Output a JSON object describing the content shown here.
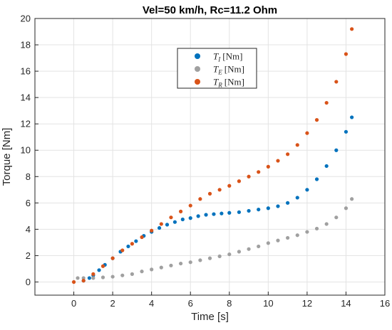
{
  "chart_data": {
    "type": "scatter",
    "title": "Vel=50 km/h, Rc=11.2 Ohm",
    "xlabel": "Time [s]",
    "ylabel": "Torque [Nm]",
    "xlim": [
      -2,
      16
    ],
    "ylim": [
      -1,
      20
    ],
    "xticks": [
      0,
      2,
      4,
      6,
      8,
      10,
      12,
      14,
      16
    ],
    "yticks": [
      0,
      2,
      4,
      6,
      8,
      10,
      12,
      14,
      16,
      18,
      20
    ],
    "grid": true,
    "legend_position": "top-center",
    "series": [
      {
        "name": "T_I [Nm]",
        "legend": {
          "symbol": "T",
          "subscript": "I",
          "unit": "[Nm]"
        },
        "color": "#0072BD",
        "points": [
          [
            0.5,
            0.1
          ],
          [
            0.8,
            0.3
          ],
          [
            1.0,
            0.5
          ],
          [
            1.3,
            0.9
          ],
          [
            1.6,
            1.3
          ],
          [
            2.0,
            1.8
          ],
          [
            2.4,
            2.3
          ],
          [
            2.8,
            2.7
          ],
          [
            3.2,
            3.1
          ],
          [
            3.6,
            3.5
          ],
          [
            4.0,
            3.8
          ],
          [
            4.4,
            4.1
          ],
          [
            4.8,
            4.35
          ],
          [
            5.2,
            4.55
          ],
          [
            5.6,
            4.75
          ],
          [
            6.0,
            4.85
          ],
          [
            6.4,
            5.0
          ],
          [
            6.8,
            5.1
          ],
          [
            7.2,
            5.15
          ],
          [
            7.6,
            5.2
          ],
          [
            8.0,
            5.25
          ],
          [
            8.5,
            5.3
          ],
          [
            9.0,
            5.4
          ],
          [
            9.5,
            5.5
          ],
          [
            10.0,
            5.6
          ],
          [
            10.5,
            5.75
          ],
          [
            11.0,
            6.0
          ],
          [
            11.5,
            6.4
          ],
          [
            12.0,
            7.0
          ],
          [
            12.5,
            7.8
          ],
          [
            13.0,
            8.8
          ],
          [
            13.5,
            10.0
          ],
          [
            14.0,
            11.4
          ],
          [
            14.3,
            12.5
          ]
        ]
      },
      {
        "name": "T_E [Nm]",
        "legend": {
          "symbol": "T",
          "subscript": "E",
          "unit": "[Nm]"
        },
        "color": "#A0A0A0",
        "points": [
          [
            0.2,
            0.3
          ],
          [
            0.5,
            0.3
          ],
          [
            1.0,
            0.3
          ],
          [
            1.5,
            0.35
          ],
          [
            2.0,
            0.4
          ],
          [
            2.5,
            0.5
          ],
          [
            3.0,
            0.6
          ],
          [
            3.5,
            0.8
          ],
          [
            4.0,
            0.95
          ],
          [
            4.5,
            1.1
          ],
          [
            5.0,
            1.25
          ],
          [
            5.5,
            1.4
          ],
          [
            6.0,
            1.5
          ],
          [
            6.5,
            1.65
          ],
          [
            7.0,
            1.8
          ],
          [
            7.5,
            1.95
          ],
          [
            8.0,
            2.1
          ],
          [
            8.5,
            2.3
          ],
          [
            9.0,
            2.5
          ],
          [
            9.5,
            2.7
          ],
          [
            10.0,
            2.95
          ],
          [
            10.5,
            3.15
          ],
          [
            11.0,
            3.35
          ],
          [
            11.5,
            3.55
          ],
          [
            12.0,
            3.8
          ],
          [
            12.5,
            4.05
          ],
          [
            13.0,
            4.4
          ],
          [
            13.5,
            4.9
          ],
          [
            14.0,
            5.6
          ],
          [
            14.3,
            6.3
          ]
        ]
      },
      {
        "name": "T_R [Nm]",
        "legend": {
          "symbol": "T",
          "subscript": "R",
          "unit": "[Nm]"
        },
        "color": "#D95319",
        "points": [
          [
            0.0,
            0.0
          ],
          [
            0.5,
            0.1
          ],
          [
            1.0,
            0.6
          ],
          [
            1.5,
            1.2
          ],
          [
            2.0,
            1.8
          ],
          [
            2.5,
            2.4
          ],
          [
            3.0,
            2.9
          ],
          [
            3.5,
            3.4
          ],
          [
            4.0,
            3.9
          ],
          [
            4.5,
            4.4
          ],
          [
            5.0,
            4.9
          ],
          [
            5.5,
            5.35
          ],
          [
            6.0,
            5.8
          ],
          [
            6.5,
            6.3
          ],
          [
            7.0,
            6.7
          ],
          [
            7.5,
            7.0
          ],
          [
            8.0,
            7.3
          ],
          [
            8.5,
            7.65
          ],
          [
            9.0,
            8.0
          ],
          [
            9.5,
            8.35
          ],
          [
            10.0,
            8.75
          ],
          [
            10.5,
            9.2
          ],
          [
            11.0,
            9.7
          ],
          [
            11.5,
            10.4
          ],
          [
            12.0,
            11.3
          ],
          [
            12.5,
            12.3
          ],
          [
            13.0,
            13.6
          ],
          [
            13.5,
            15.2
          ],
          [
            14.0,
            17.3
          ],
          [
            14.3,
            19.2
          ]
        ]
      }
    ]
  }
}
